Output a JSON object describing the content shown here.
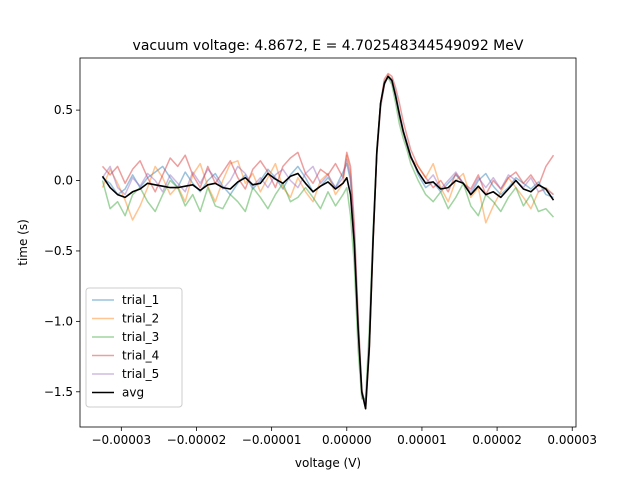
{
  "chart_data": {
    "type": "line",
    "title": "vacuum voltage: 4.8672, E = 4.702548344549092 MeV",
    "xlabel": "voltage (V)",
    "ylabel": "time (s)",
    "xlim": [
      -3.55e-05,
      3.05e-05
    ],
    "ylim": [
      -1.75,
      0.87
    ],
    "xticks": [
      -3e-05,
      -2e-05,
      -1e-05,
      0.0,
      1e-05,
      2e-05,
      3e-05
    ],
    "xtick_labels": [
      "−0.00003",
      "−0.00002",
      "−0.00001",
      "0.00000",
      "0.00001",
      "0.00002",
      "0.00003"
    ],
    "yticks": [
      -1.5,
      -1.0,
      -0.5,
      0.0,
      0.5
    ],
    "ytick_labels": [
      "−1.5",
      "−1.0",
      "−0.5",
      "0.0",
      "0.5"
    ],
    "legend_position": "lower-left",
    "grid": false,
    "x": [
      -3.25e-05,
      -3.15e-05,
      -3.05e-05,
      -2.95e-05,
      -2.85e-05,
      -2.75e-05,
      -2.65e-05,
      -2.55e-05,
      -2.45e-05,
      -2.35e-05,
      -2.25e-05,
      -2.15e-05,
      -2.05e-05,
      -1.95e-05,
      -1.85e-05,
      -1.75e-05,
      -1.65e-05,
      -1.55e-05,
      -1.45e-05,
      -1.35e-05,
      -1.25e-05,
      -1.15e-05,
      -1.05e-05,
      -9.5e-06,
      -8.5e-06,
      -7.5e-06,
      -6.5e-06,
      -5.5e-06,
      -4.5e-06,
      -3.5e-06,
      -2.5e-06,
      -1.5e-06,
      -5e-07,
      0.0,
      5e-07,
      1e-06,
      1.5e-06,
      2e-06,
      2.5e-06,
      3e-06,
      3.5e-06,
      4e-06,
      4.5e-06,
      5e-06,
      5.5e-06,
      6e-06,
      6.5e-06,
      7e-06,
      7.5e-06,
      8e-06,
      8.5e-06,
      9.5e-06,
      1.05e-05,
      1.15e-05,
      1.25e-05,
      1.35e-05,
      1.45e-05,
      1.55e-05,
      1.65e-05,
      1.75e-05,
      1.85e-05,
      1.95e-05,
      2.05e-05,
      2.15e-05,
      2.25e-05,
      2.35e-05,
      2.45e-05,
      2.55e-05,
      2.65e-05,
      2.75e-05
    ],
    "series": [
      {
        "name": "trial_1",
        "color": "#1f77b4",
        "values": [
          0.02,
          -0.02,
          -0.1,
          -0.06,
          0.04,
          -0.05,
          0.02,
          0.06,
          0.1,
          0.02,
          -0.05,
          0.06,
          -0.02,
          -0.08,
          0.0,
          0.05,
          -0.04,
          -0.1,
          -0.02,
          0.04,
          -0.06,
          0.0,
          0.08,
          0.02,
          -0.06,
          0.04,
          0.1,
          0.02,
          -0.08,
          -0.04,
          0.02,
          -0.05,
          0.06,
          0.12,
          0.0,
          -0.4,
          -1.0,
          -1.5,
          -1.58,
          -1.2,
          -0.4,
          0.2,
          0.55,
          0.7,
          0.74,
          0.72,
          0.62,
          0.48,
          0.36,
          0.27,
          0.18,
          0.04,
          -0.05,
          -0.01,
          -0.08,
          -0.02,
          0.04,
          -0.02,
          -0.1,
          0.0,
          0.05,
          -0.04,
          -0.1,
          -0.05,
          0.02,
          -0.02,
          -0.06,
          -0.01,
          -0.1,
          -0.12
        ]
      },
      {
        "name": "trial_2",
        "color": "#ff7f0e",
        "values": [
          -0.05,
          0.08,
          -0.02,
          -0.14,
          -0.28,
          -0.18,
          -0.05,
          0.1,
          0.02,
          -0.1,
          -0.04,
          -0.15,
          0.04,
          0.12,
          -0.04,
          -0.15,
          0.0,
          0.12,
          0.14,
          -0.02,
          0.05,
          -0.08,
          0.02,
          0.12,
          -0.05,
          -0.12,
          0.02,
          -0.08,
          -0.15,
          0.0,
          0.05,
          -0.1,
          -0.02,
          0.18,
          0.05,
          -0.42,
          -1.05,
          -1.52,
          -1.6,
          -1.18,
          -0.42,
          0.18,
          0.52,
          0.68,
          0.75,
          0.71,
          0.6,
          0.46,
          0.34,
          0.26,
          0.16,
          0.1,
          0.02,
          0.12,
          -0.05,
          -0.15,
          0.0,
          0.05,
          -0.12,
          -0.05,
          -0.3,
          -0.18,
          -0.08,
          0.02,
          -0.05,
          -0.12,
          -0.2,
          -0.08,
          -0.05,
          -0.1
        ]
      },
      {
        "name": "trial_3",
        "color": "#2ca02c",
        "values": [
          0.0,
          -0.2,
          -0.15,
          -0.25,
          -0.1,
          -0.05,
          -0.15,
          -0.22,
          -0.1,
          0.0,
          -0.05,
          -0.18,
          -0.1,
          -0.22,
          -0.05,
          -0.18,
          -0.2,
          -0.1,
          -0.15,
          -0.22,
          -0.05,
          -0.12,
          -0.2,
          -0.1,
          -0.02,
          -0.15,
          -0.12,
          -0.05,
          -0.12,
          -0.2,
          -0.08,
          -0.18,
          -0.1,
          -0.05,
          -0.25,
          -0.6,
          -1.2,
          -1.55,
          -1.55,
          -1.05,
          -0.35,
          0.22,
          0.55,
          0.7,
          0.73,
          0.68,
          0.55,
          0.4,
          0.3,
          0.22,
          0.12,
          0.0,
          -0.1,
          -0.15,
          -0.08,
          -0.2,
          -0.12,
          -0.02,
          -0.18,
          -0.25,
          -0.1,
          -0.15,
          -0.22,
          -0.12,
          -0.05,
          -0.18,
          -0.1,
          -0.22,
          -0.2,
          -0.26
        ]
      },
      {
        "name": "trial_4",
        "color": "#d62728",
        "values": [
          0.1,
          0.04,
          0.1,
          -0.02,
          0.08,
          0.14,
          0.02,
          -0.08,
          0.04,
          0.16,
          0.1,
          0.18,
          0.04,
          -0.05,
          0.1,
          -0.02,
          0.06,
          0.14,
          0.02,
          -0.06,
          0.08,
          0.14,
          0.06,
          -0.05,
          0.1,
          0.16,
          0.2,
          0.05,
          -0.02,
          0.08,
          0.04,
          0.12,
          0.02,
          0.2,
          0.1,
          -0.3,
          -0.95,
          -1.48,
          -1.62,
          -1.22,
          -0.45,
          0.2,
          0.55,
          0.72,
          0.76,
          0.74,
          0.66,
          0.55,
          0.42,
          0.32,
          0.22,
          0.1,
          0.02,
          -0.05,
          0.0,
          -0.08,
          0.05,
          -0.02,
          -0.06,
          0.04,
          -0.1,
          0.0,
          -0.06,
          0.02,
          0.06,
          -0.02,
          0.04,
          -0.04,
          0.1,
          0.18
        ]
      },
      {
        "name": "trial_5",
        "color": "#9467bd",
        "values": [
          0.02,
          0.1,
          -0.05,
          -0.1,
          0.02,
          -0.04,
          0.05,
          0.0,
          -0.08,
          0.04,
          -0.02,
          -0.08,
          0.06,
          -0.02,
          0.08,
          0.02,
          -0.06,
          0.0,
          0.1,
          0.05,
          -0.04,
          0.02,
          -0.05,
          0.04,
          0.08,
          0.0,
          -0.05,
          0.05,
          0.1,
          -0.02,
          0.04,
          -0.05,
          0.02,
          0.15,
          0.02,
          -0.38,
          -1.0,
          -1.52,
          -1.58,
          -1.15,
          -0.4,
          0.18,
          0.52,
          0.68,
          0.74,
          0.7,
          0.6,
          0.45,
          0.34,
          0.25,
          0.16,
          0.06,
          -0.02,
          0.04,
          -0.06,
          0.0,
          0.06,
          -0.02,
          -0.08,
          0.02,
          -0.05,
          0.02,
          -0.06,
          0.04,
          0.0,
          -0.05,
          0.02,
          -0.08,
          -0.06,
          -0.1
        ]
      },
      {
        "name": "avg",
        "color": "#000000",
        "values": [
          0.03,
          -0.05,
          -0.1,
          -0.12,
          -0.08,
          -0.06,
          -0.02,
          -0.03,
          -0.04,
          -0.05,
          -0.05,
          -0.04,
          -0.03,
          -0.07,
          -0.03,
          -0.02,
          -0.05,
          -0.06,
          -0.01,
          0.02,
          -0.03,
          -0.02,
          0.05,
          0.01,
          -0.02,
          0.03,
          0.05,
          -0.02,
          -0.08,
          -0.04,
          -0.01,
          -0.06,
          -0.02,
          0.02,
          -0.1,
          -0.45,
          -1.05,
          -1.5,
          -1.62,
          -1.18,
          -0.42,
          0.2,
          0.55,
          0.69,
          0.74,
          0.71,
          0.6,
          0.47,
          0.35,
          0.26,
          0.17,
          0.06,
          -0.02,
          -0.01,
          -0.06,
          -0.05,
          0.0,
          -0.02,
          -0.1,
          -0.04,
          -0.1,
          -0.08,
          -0.12,
          -0.06,
          0.0,
          -0.06,
          -0.08,
          -0.03,
          -0.06,
          -0.14
        ]
      }
    ]
  }
}
